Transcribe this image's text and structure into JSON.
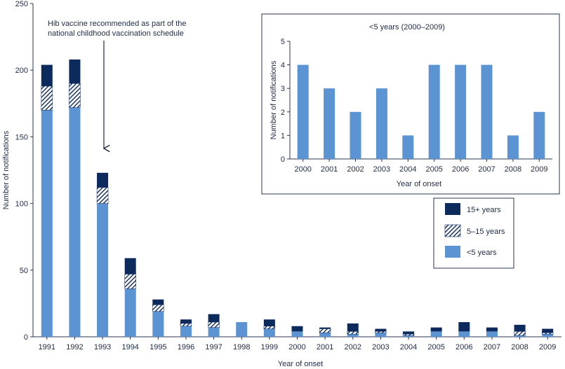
{
  "colors": {
    "under5": "#5b93d3",
    "age5_15_hatch": "#ffffff",
    "age15plus": "#0c2a5c",
    "axis": "#2a3550",
    "text": "#1f2a44"
  },
  "chart_data": [
    {
      "type": "bar",
      "stacked": true,
      "title": "",
      "xlabel": "Year of onset",
      "ylabel": "Number of notifications",
      "ylim": [
        0,
        250
      ],
      "yticks": [
        0,
        50,
        100,
        150,
        200,
        250
      ],
      "categories": [
        "1991",
        "1992",
        "1993",
        "1994",
        "1995",
        "1996",
        "1997",
        "1998",
        "1999",
        "2000",
        "2001",
        "2002",
        "2003",
        "2004",
        "2005",
        "2006",
        "2007",
        "2008",
        "2009"
      ],
      "series": [
        {
          "name": "<5 years",
          "pattern": "solid",
          "values": [
            170,
            172,
            100,
            36,
            19,
            8,
            7,
            11,
            6,
            4,
            3,
            2,
            3,
            1,
            4,
            4,
            4,
            1,
            2
          ]
        },
        {
          "name": "5–15 years",
          "pattern": "hatched",
          "values": [
            18,
            18,
            12,
            11,
            5,
            2,
            4,
            0,
            2,
            0,
            3,
            2,
            1,
            1,
            0,
            0,
            0,
            3,
            1
          ]
        },
        {
          "name": "15+ years",
          "pattern": "solid-dark",
          "values": [
            16,
            18,
            11,
            12,
            4,
            3,
            6,
            0,
            5,
            4,
            1,
            6,
            2,
            2,
            3,
            7,
            3,
            5,
            3
          ]
        }
      ],
      "legend": {
        "position": "right",
        "items": [
          "15+ years",
          "5–15 years",
          "<5 years"
        ]
      },
      "annotation": {
        "line1": "Hib vaccine recommended as part of the",
        "line2": "national childhood vaccination schedule",
        "target_category": "1993"
      }
    },
    {
      "type": "bar",
      "title": "<5 years (2000–2009)",
      "xlabel": "Year of onset",
      "ylabel": "Number of notifications",
      "ylim": [
        0,
        5
      ],
      "yticks": [
        0,
        1,
        2,
        3,
        4,
        5
      ],
      "categories": [
        "2000",
        "2001",
        "2002",
        "2003",
        "2004",
        "2005",
        "2006",
        "2007",
        "2008",
        "2009"
      ],
      "values": [
        4,
        3,
        2,
        3,
        1,
        4,
        4,
        4,
        1,
        2
      ]
    }
  ]
}
